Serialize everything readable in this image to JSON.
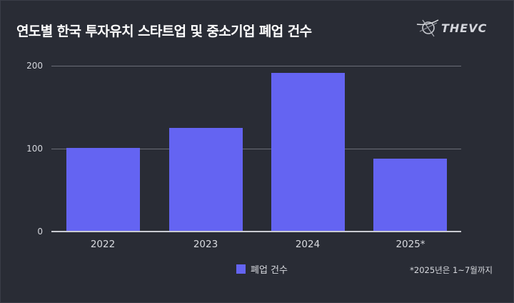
{
  "header": {
    "title": "연도별 한국 투자유치 스타트업 및 중소기업 폐업 건수",
    "logo_text": "THEVC",
    "logo_icon": "orbit-logo-icon"
  },
  "colors": {
    "background": "#292c35",
    "bar": "#6464f2",
    "gridline": "#6b6e78",
    "text": "#d8dadf"
  },
  "chart_data": {
    "type": "bar",
    "title": "연도별 한국 투자유치 스타트업 및 중소기업 폐업 건수",
    "categories": [
      "2022",
      "2023",
      "2024",
      "2025*"
    ],
    "series": [
      {
        "name": "폐업 건수",
        "values": [
          101,
          125,
          191,
          88
        ]
      }
    ],
    "values": [
      101,
      125,
      191,
      88
    ],
    "xlabel": "",
    "ylabel": "",
    "ylim": [
      0,
      200
    ],
    "yticks": [
      "0",
      "100",
      "200"
    ],
    "grid": true,
    "legend_position": "bottom",
    "annotations": [
      "*2025년은 1~7월까지"
    ]
  },
  "legend": {
    "label": "폐업 건수"
  },
  "footnote": "*2025년은 1~7월까지"
}
